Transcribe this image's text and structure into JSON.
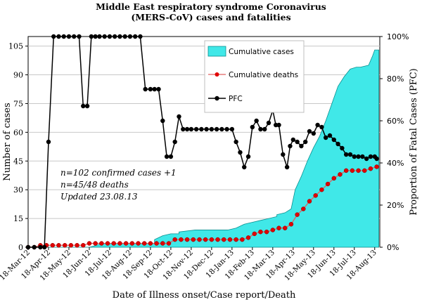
{
  "chart_data": {
    "type": "area",
    "title": "Middle East respiratory syndrome Coronavirus\n(MERS-CoV) cases and fatalities",
    "xlabel": "Date of Illness onset/Case report/Death",
    "ylabel": "Number of cases",
    "y2label": "Proportion of Fatal Cases (PFC)",
    "ylim": [
      0,
      110
    ],
    "y2lim": [
      0,
      100
    ],
    "yticks": [
      "0",
      "15",
      "30",
      "45",
      "60",
      "75",
      "90",
      "105"
    ],
    "y2ticks": [
      "0%",
      "20%",
      "40%",
      "60%",
      "80%",
      "100%"
    ],
    "xticks": [
      "18-Mar-12",
      "18-Apr-12",
      "18-May-12",
      "18-Jun-12",
      "18-Jul-12",
      "18-Aug-12",
      "18-Sep-12",
      "18-Oct-12",
      "18-Nov-12",
      "18-Dec-12",
      "18-Jan-13",
      "18-Feb-13",
      "18-Mar-13",
      "18-Apr-13",
      "18-May-13",
      "18-Jun-13",
      "18-Jul-13",
      "18-Aug-13"
    ],
    "legend_position": "top-right",
    "annotation": [
      "n=102 confirmed cases +1",
      "n=45/48 deaths",
      "Updated 23.08.13"
    ],
    "series": [
      {
        "name": "Cumulative cases",
        "kind": "area",
        "axis": "left",
        "color": "#40e8e8",
        "x": [
          0,
          3,
          3.7,
          5.3,
          6.2,
          6.2,
          6.6,
          7,
          7.4,
          7.4,
          8.2,
          8.8,
          9.8,
          10.2,
          10.6,
          11,
          11.4,
          11.8,
          12.2,
          12.2,
          12.6,
          12.9,
          13.1,
          13.4,
          13.7,
          14,
          14.3,
          14.6,
          14.9,
          15.2,
          15.5,
          15.8,
          16.1,
          16.3,
          16.7,
          16.9,
          17.0,
          17.2
        ],
        "y": [
          0,
          0,
          2,
          2,
          2,
          4,
          6,
          7,
          7,
          8,
          9,
          9,
          9,
          10,
          12,
          13,
          14,
          15,
          16,
          17,
          18,
          20,
          30,
          37,
          45,
          52,
          58,
          66,
          75,
          84,
          89,
          93,
          94,
          94,
          95,
          100,
          103,
          103
        ]
      },
      {
        "name": "Cumulative deaths",
        "kind": "line",
        "axis": "left",
        "color": "#e00000",
        "x": [
          0,
          0.3,
          0.6,
          0.9,
          1.2,
          1.5,
          1.8,
          2.1,
          2.4,
          2.7,
          3.0,
          3.3,
          3.6,
          3.9,
          4.2,
          4.5,
          4.8,
          5.1,
          5.4,
          5.7,
          6.0,
          6.3,
          6.6,
          6.9,
          7.2,
          7.5,
          7.8,
          8.1,
          8.4,
          8.7,
          9.0,
          9.3,
          9.6,
          9.9,
          10.2,
          10.5,
          10.8,
          11.1,
          11.4,
          11.7,
          12.0,
          12.3,
          12.6,
          12.9,
          13.2,
          13.5,
          13.8,
          14.1,
          14.4,
          14.7,
          15.0,
          15.3,
          15.6,
          15.9,
          16.2,
          16.5,
          16.8,
          17.1
        ],
        "y": [
          0,
          0,
          1,
          1,
          1,
          1,
          1,
          1,
          1,
          1,
          2,
          2,
          2,
          2,
          2,
          2,
          2,
          2,
          2,
          2,
          2,
          2,
          2,
          2,
          4,
          4,
          4,
          4,
          4,
          4,
          4,
          4,
          4,
          4,
          4,
          4,
          5,
          7,
          8,
          8,
          9,
          10,
          10,
          12,
          17,
          20,
          24,
          27,
          30,
          33,
          36,
          38,
          40,
          40,
          40,
          40,
          41,
          42
        ]
      },
      {
        "name": "PFC",
        "kind": "line",
        "axis": "right",
        "color": "#000000",
        "x": [
          0,
          0.3,
          0.6,
          0.8,
          1.0,
          1.25,
          1.5,
          1.75,
          2.0,
          2.25,
          2.5,
          2.7,
          2.9,
          3.1,
          3.3,
          3.5,
          3.75,
          4.0,
          4.25,
          4.5,
          4.75,
          5.0,
          5.25,
          5.5,
          5.75,
          6.0,
          6.2,
          6.4,
          6.6,
          6.8,
          7.0,
          7.2,
          7.4,
          7.6,
          7.8,
          8.0,
          8.25,
          8.5,
          8.75,
          9.0,
          9.25,
          9.5,
          9.75,
          10.0,
          10.2,
          10.4,
          10.6,
          10.8,
          11.0,
          11.2,
          11.4,
          11.6,
          11.8,
          12.0,
          12.15,
          12.3,
          12.5,
          12.7,
          12.85,
          13.0,
          13.2,
          13.4,
          13.6,
          13.8,
          14.0,
          14.2,
          14.4,
          14.6,
          14.8,
          15.0,
          15.2,
          15.4,
          15.6,
          15.8,
          16.0,
          16.2,
          16.4,
          16.6,
          16.8,
          17.0,
          17.1
        ],
        "y": [
          0,
          0,
          0,
          0,
          0.5,
          1.0,
          1.0,
          1.0,
          1.0,
          1.0,
          1.0,
          0.67,
          0.67,
          1.0,
          1.0,
          1.0,
          1.0,
          1.0,
          1.0,
          1.0,
          1.0,
          1.0,
          1.0,
          1.0,
          0.75,
          0.75,
          0.75,
          0.75,
          0.6,
          0.43,
          0.43,
          0.5,
          0.62,
          0.56,
          0.56,
          0.56,
          0.56,
          0.56,
          0.56,
          0.56,
          0.56,
          0.56,
          0.56,
          0.56,
          0.5,
          0.45,
          0.38,
          0.43,
          0.57,
          0.6,
          0.56,
          0.56,
          0.59,
          0.65,
          0.58,
          0.58,
          0.44,
          0.38,
          0.48,
          0.51,
          0.5,
          0.48,
          0.5,
          0.55,
          0.54,
          0.58,
          0.57,
          0.52,
          0.53,
          0.51,
          0.49,
          0.47,
          0.44,
          0.44,
          0.43,
          0.43,
          0.43,
          0.42,
          0.43,
          0.43,
          0.42
        ]
      }
    ]
  }
}
